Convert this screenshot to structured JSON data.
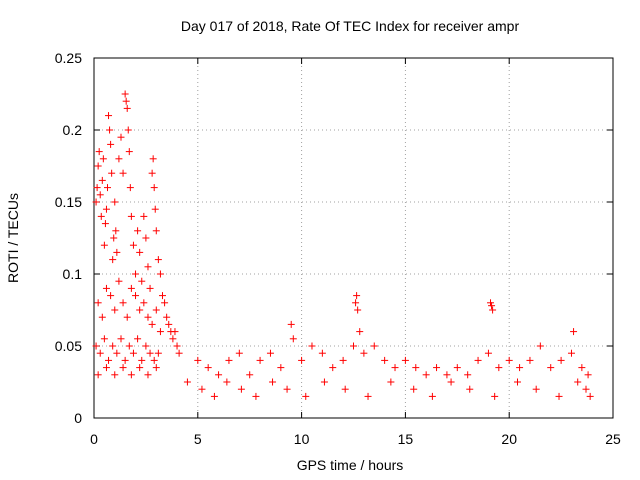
{
  "chart_data": {
    "type": "scatter",
    "title": "Day 017 of 2018, Rate Of TEC Index for receiver ampr",
    "xlabel": "GPS time / hours",
    "ylabel": "ROTI / TECUs",
    "xlim": [
      0,
      25
    ],
    "ylim": [
      0,
      0.25
    ],
    "x_ticks": [
      0,
      5,
      10,
      15,
      20,
      25
    ],
    "x_tick_labels": [
      "0",
      "5",
      "10",
      "15",
      "20",
      "25"
    ],
    "y_ticks": [
      0,
      0.05,
      0.1,
      0.15,
      0.2,
      0.25
    ],
    "y_tick_labels": [
      "0",
      "0.05",
      "0.1",
      "0.15",
      "0.2",
      "0.25"
    ],
    "grid": true,
    "marker": "+",
    "series_color": "#ff0000",
    "series": [
      {
        "name": "ROTI",
        "points": [
          [
            0.1,
            0.15
          ],
          [
            0.15,
            0.16
          ],
          [
            0.2,
            0.175
          ],
          [
            0.25,
            0.185
          ],
          [
            0.3,
            0.155
          ],
          [
            0.35,
            0.14
          ],
          [
            0.4,
            0.165
          ],
          [
            0.45,
            0.18
          ],
          [
            0.5,
            0.12
          ],
          [
            0.55,
            0.135
          ],
          [
            0.6,
            0.145
          ],
          [
            0.65,
            0.16
          ],
          [
            0.7,
            0.21
          ],
          [
            0.75,
            0.2
          ],
          [
            0.8,
            0.19
          ],
          [
            0.85,
            0.17
          ],
          [
            0.9,
            0.11
          ],
          [
            0.95,
            0.125
          ],
          [
            1.0,
            0.15
          ],
          [
            1.05,
            0.13
          ],
          [
            1.1,
            0.115
          ],
          [
            1.2,
            0.18
          ],
          [
            1.3,
            0.195
          ],
          [
            1.4,
            0.17
          ],
          [
            1.5,
            0.225
          ],
          [
            1.55,
            0.22
          ],
          [
            1.6,
            0.215
          ],
          [
            1.65,
            0.2
          ],
          [
            1.7,
            0.185
          ],
          [
            1.75,
            0.16
          ],
          [
            1.8,
            0.14
          ],
          [
            1.9,
            0.12
          ],
          [
            2.0,
            0.1
          ],
          [
            2.1,
            0.13
          ],
          [
            2.2,
            0.115
          ],
          [
            2.3,
            0.095
          ],
          [
            2.4,
            0.14
          ],
          [
            2.5,
            0.125
          ],
          [
            2.6,
            0.105
          ],
          [
            2.7,
            0.09
          ],
          [
            2.8,
            0.17
          ],
          [
            2.85,
            0.18
          ],
          [
            2.9,
            0.16
          ],
          [
            2.95,
            0.145
          ],
          [
            3.0,
            0.13
          ],
          [
            3.1,
            0.11
          ],
          [
            3.2,
            0.1
          ],
          [
            3.3,
            0.085
          ],
          [
            3.4,
            0.08
          ],
          [
            3.5,
            0.07
          ],
          [
            3.6,
            0.065
          ],
          [
            3.7,
            0.06
          ],
          [
            3.8,
            0.055
          ],
          [
            3.9,
            0.06
          ],
          [
            4.0,
            0.05
          ],
          [
            4.1,
            0.045
          ],
          [
            0.2,
            0.08
          ],
          [
            0.4,
            0.07
          ],
          [
            0.6,
            0.09
          ],
          [
            0.8,
            0.085
          ],
          [
            1.0,
            0.075
          ],
          [
            1.2,
            0.095
          ],
          [
            1.4,
            0.08
          ],
          [
            1.6,
            0.07
          ],
          [
            1.8,
            0.09
          ],
          [
            2.0,
            0.085
          ],
          [
            2.2,
            0.075
          ],
          [
            2.4,
            0.08
          ],
          [
            2.6,
            0.07
          ],
          [
            2.8,
            0.065
          ],
          [
            3.0,
            0.075
          ],
          [
            3.2,
            0.06
          ],
          [
            0.1,
            0.05
          ],
          [
            0.3,
            0.045
          ],
          [
            0.5,
            0.055
          ],
          [
            0.7,
            0.04
          ],
          [
            0.9,
            0.05
          ],
          [
            1.1,
            0.045
          ],
          [
            1.3,
            0.055
          ],
          [
            1.5,
            0.04
          ],
          [
            1.7,
            0.05
          ],
          [
            1.9,
            0.045
          ],
          [
            2.1,
            0.055
          ],
          [
            2.3,
            0.04
          ],
          [
            2.5,
            0.05
          ],
          [
            2.7,
            0.045
          ],
          [
            2.9,
            0.04
          ],
          [
            3.1,
            0.045
          ],
          [
            0.2,
            0.03
          ],
          [
            0.6,
            0.035
          ],
          [
            1.0,
            0.03
          ],
          [
            1.4,
            0.035
          ],
          [
            1.8,
            0.03
          ],
          [
            2.2,
            0.035
          ],
          [
            2.6,
            0.03
          ],
          [
            3.0,
            0.035
          ],
          [
            5.0,
            0.04
          ],
          [
            5.5,
            0.035
          ],
          [
            6.0,
            0.03
          ],
          [
            6.5,
            0.04
          ],
          [
            7.0,
            0.045
          ],
          [
            7.5,
            0.03
          ],
          [
            8.0,
            0.04
          ],
          [
            8.5,
            0.045
          ],
          [
            9.0,
            0.035
          ],
          [
            9.5,
            0.065
          ],
          [
            9.6,
            0.055
          ],
          [
            10.0,
            0.04
          ],
          [
            10.5,
            0.05
          ],
          [
            11.0,
            0.045
          ],
          [
            11.5,
            0.035
          ],
          [
            12.0,
            0.04
          ],
          [
            12.5,
            0.05
          ],
          [
            12.6,
            0.08
          ],
          [
            12.65,
            0.085
          ],
          [
            12.7,
            0.075
          ],
          [
            12.8,
            0.06
          ],
          [
            13.0,
            0.045
          ],
          [
            13.5,
            0.05
          ],
          [
            14.0,
            0.04
          ],
          [
            14.5,
            0.035
          ],
          [
            15.0,
            0.04
          ],
          [
            15.5,
            0.035
          ],
          [
            16.0,
            0.03
          ],
          [
            16.5,
            0.035
          ],
          [
            17.0,
            0.03
          ],
          [
            17.5,
            0.035
          ],
          [
            18.0,
            0.03
          ],
          [
            18.5,
            0.04
          ],
          [
            19.0,
            0.045
          ],
          [
            19.1,
            0.08
          ],
          [
            19.15,
            0.078
          ],
          [
            19.2,
            0.075
          ],
          [
            19.5,
            0.035
          ],
          [
            20.0,
            0.04
          ],
          [
            20.5,
            0.035
          ],
          [
            21.0,
            0.04
          ],
          [
            21.5,
            0.05
          ],
          [
            22.0,
            0.035
          ],
          [
            22.5,
            0.04
          ],
          [
            23.0,
            0.045
          ],
          [
            23.1,
            0.06
          ],
          [
            23.5,
            0.035
          ],
          [
            23.8,
            0.03
          ],
          [
            4.5,
            0.025
          ],
          [
            5.2,
            0.02
          ],
          [
            5.8,
            0.015
          ],
          [
            6.4,
            0.025
          ],
          [
            7.1,
            0.02
          ],
          [
            7.8,
            0.015
          ],
          [
            8.6,
            0.025
          ],
          [
            9.3,
            0.02
          ],
          [
            10.2,
            0.015
          ],
          [
            11.1,
            0.025
          ],
          [
            12.1,
            0.02
          ],
          [
            13.2,
            0.015
          ],
          [
            14.3,
            0.025
          ],
          [
            15.4,
            0.02
          ],
          [
            16.3,
            0.015
          ],
          [
            17.2,
            0.025
          ],
          [
            18.1,
            0.02
          ],
          [
            19.3,
            0.015
          ],
          [
            20.4,
            0.025
          ],
          [
            21.3,
            0.02
          ],
          [
            22.4,
            0.015
          ],
          [
            23.3,
            0.025
          ],
          [
            23.7,
            0.02
          ],
          [
            23.9,
            0.015
          ]
        ]
      }
    ]
  }
}
